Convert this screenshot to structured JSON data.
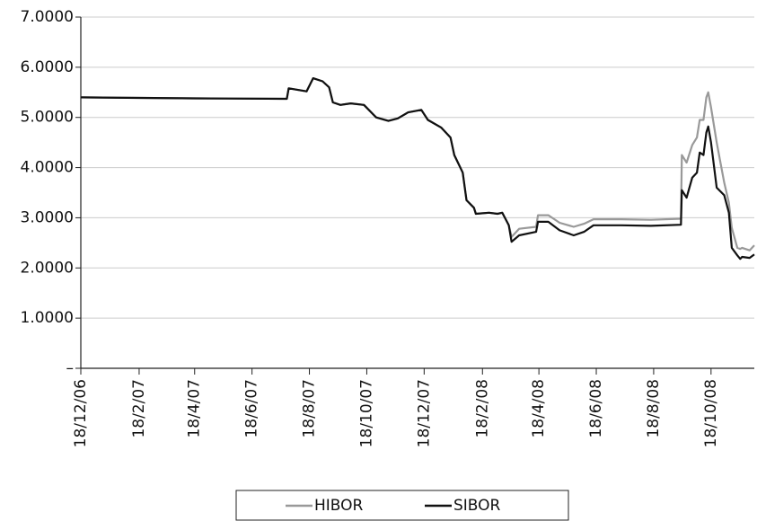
{
  "chart_data": {
    "type": "line",
    "x": [
      "2006-12-18",
      "2007-04-18",
      "2007-07-25",
      "2007-07-27",
      "2007-08-15",
      "2007-08-22",
      "2007-09-01",
      "2007-09-08",
      "2007-09-12",
      "2007-09-20",
      "2007-10-01",
      "2007-10-15",
      "2007-10-28",
      "2007-11-10",
      "2007-11-20",
      "2007-12-01",
      "2007-12-15",
      "2007-12-22",
      "2008-01-05",
      "2008-01-15",
      "2008-01-19",
      "2008-01-28",
      "2008-02-01",
      "2008-02-09",
      "2008-02-11",
      "2008-02-25",
      "2008-03-05",
      "2008-03-10",
      "2008-03-17",
      "2008-03-20",
      "2008-03-28",
      "2008-04-15",
      "2008-04-17",
      "2008-04-28",
      "2008-05-10",
      "2008-05-25",
      "2008-06-05",
      "2008-06-15",
      "2008-07-15",
      "2008-08-15",
      "2008-09-16",
      "2008-09-17",
      "2008-09-22",
      "2008-09-28",
      "2008-10-03",
      "2008-10-06",
      "2008-10-10",
      "2008-10-13",
      "2008-10-15",
      "2008-10-18",
      "2008-10-24",
      "2008-11-01",
      "2008-11-06",
      "2008-11-09",
      "2008-11-15",
      "2008-11-18",
      "2008-11-20",
      "2008-11-28",
      "2008-12-03"
    ],
    "series": [
      {
        "name": "HIBOR",
        "color": "#999999",
        "values": [
          5.4,
          5.38,
          5.37,
          5.58,
          5.52,
          5.78,
          5.72,
          5.6,
          5.3,
          5.25,
          5.28,
          5.25,
          5.0,
          4.93,
          4.98,
          5.1,
          5.15,
          4.95,
          4.8,
          4.6,
          4.25,
          3.9,
          3.35,
          3.2,
          3.08,
          3.1,
          3.08,
          3.1,
          2.85,
          2.62,
          2.78,
          2.82,
          3.05,
          3.05,
          2.9,
          2.82,
          2.88,
          2.97,
          2.97,
          2.96,
          2.98,
          4.25,
          4.1,
          4.45,
          4.6,
          4.95,
          4.95,
          5.4,
          5.5,
          5.2,
          4.5,
          3.7,
          3.3,
          2.8,
          2.4,
          2.38,
          2.4,
          2.35,
          2.45
        ]
      },
      {
        "name": "SIBOR",
        "color": "#111111",
        "values": [
          5.4,
          5.38,
          5.37,
          5.58,
          5.52,
          5.78,
          5.72,
          5.6,
          5.3,
          5.25,
          5.28,
          5.25,
          5.0,
          4.93,
          4.98,
          5.1,
          5.15,
          4.95,
          4.8,
          4.6,
          4.25,
          3.9,
          3.35,
          3.2,
          3.08,
          3.1,
          3.08,
          3.1,
          2.85,
          2.52,
          2.65,
          2.72,
          2.92,
          2.92,
          2.75,
          2.65,
          2.72,
          2.85,
          2.85,
          2.84,
          2.86,
          3.55,
          3.4,
          3.8,
          3.9,
          4.3,
          4.25,
          4.7,
          4.82,
          4.5,
          3.6,
          3.45,
          3.1,
          2.4,
          2.25,
          2.18,
          2.22,
          2.2,
          2.27
        ]
      }
    ],
    "xlim": [
      "2006-12-18",
      "2008-12-03"
    ],
    "xticks": [
      {
        "value": "2006-12-18",
        "label": "18/12/06"
      },
      {
        "value": "2007-02-18",
        "label": "18/2/07"
      },
      {
        "value": "2007-04-18",
        "label": "18/4/07"
      },
      {
        "value": "2007-06-18",
        "label": "18/6/07"
      },
      {
        "value": "2007-08-18",
        "label": "18/8/07"
      },
      {
        "value": "2007-10-18",
        "label": "18/10/07"
      },
      {
        "value": "2007-12-18",
        "label": "18/12/07"
      },
      {
        "value": "2008-02-18",
        "label": "18/2/08"
      },
      {
        "value": "2008-04-18",
        "label": "18/4/08"
      },
      {
        "value": "2008-06-18",
        "label": "18/6/08"
      },
      {
        "value": "2008-08-18",
        "label": "18/8/08"
      },
      {
        "value": "2008-10-18",
        "label": "18/10/08"
      }
    ],
    "ylim": [
      0,
      7
    ],
    "yticks": [
      {
        "value": 0,
        "label": "–"
      },
      {
        "value": 1,
        "label": "1.0000"
      },
      {
        "value": 2,
        "label": "2.0000"
      },
      {
        "value": 3,
        "label": "3.0000"
      },
      {
        "value": 4,
        "label": "4.0000"
      },
      {
        "value": 5,
        "label": "5.0000"
      },
      {
        "value": 6,
        "label": "6.0000"
      },
      {
        "value": 7,
        "label": "7.0000"
      }
    ],
    "grid": true,
    "legend": "bottom"
  }
}
